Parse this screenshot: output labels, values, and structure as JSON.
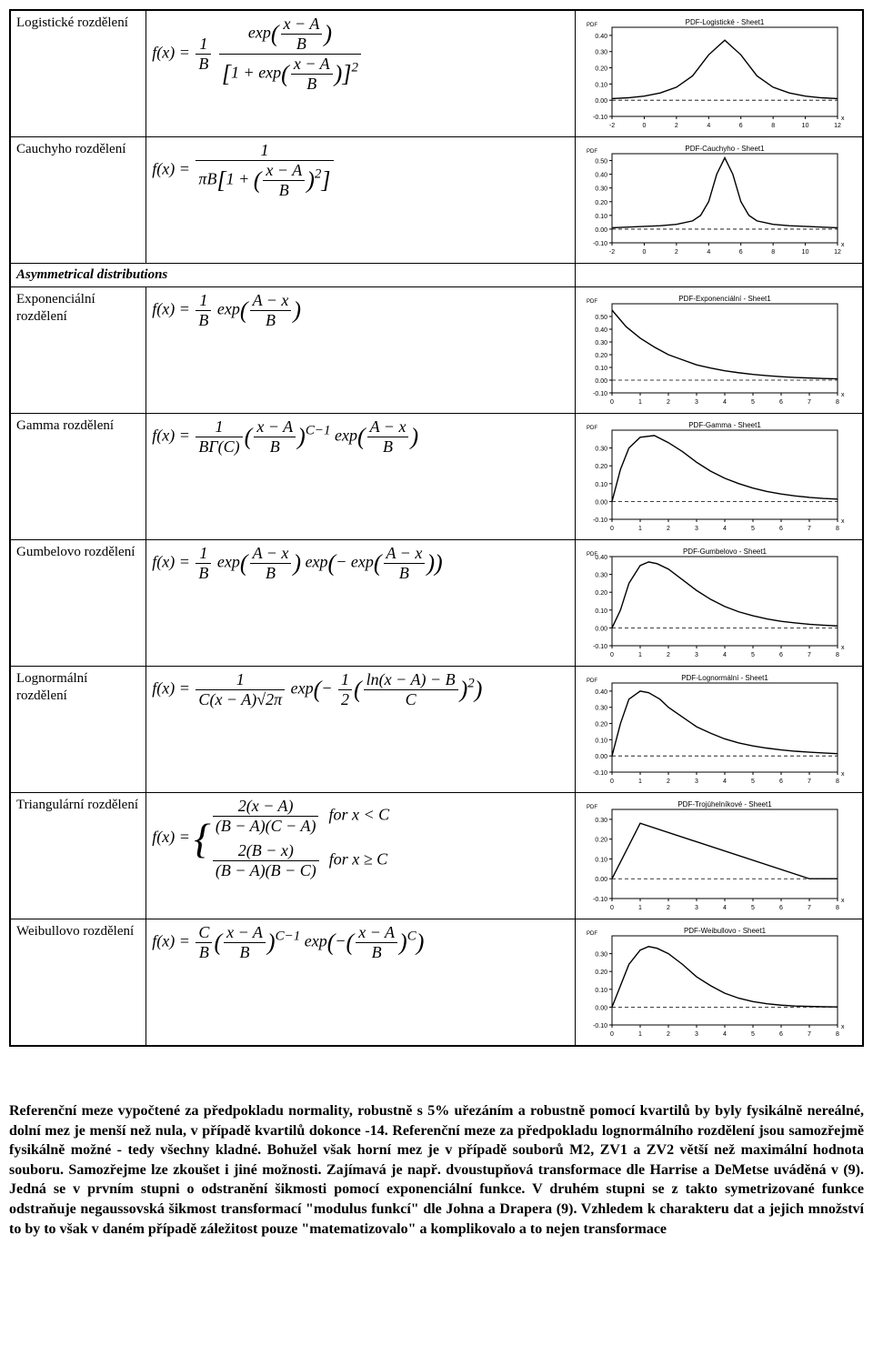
{
  "section_header": "Asymmetrical distributions",
  "paragraph": "Referenční meze vypočtené za předpokladu normality, robustně s 5% uřezáním a robustně pomocí kvartilů by byly fysikálně nereálné, dolní mez je menší než nula, v případě kvartilů dokonce -14. Referenční meze za předpokladu lognormálního rozdělení jsou samozřejmě fysikálně možné - tedy všechny kladné. Bohužel však horní mez je v případě souborů M2, ZV1 a ZV2 větší než maximální hodnota souboru. Samozřejme lze zkoušet i jiné možnosti. Zajímavá je např. dvoustupňová transformace dle Harrise a DeMetse uváděná v (9). Jedná se v prvním stupni o odstranění šikmosti pomocí exponenciální funkce. V druhém stupni se z takto symetrizované funkce odstraňuje negaussovská šikmost transformací \"modulus funkcí\" dle Johna a Drapera (9). Vzhledem k charakteru dat a jejich množství to by to však v daném případě záležitost pouze \"matematizovalo\" a komplikovalo a to nejen transformace",
  "rows": [
    {
      "name": "Logistické rozdělení",
      "formula_html": "<span style='font-style:italic'>f</span>(<span style='font-style:italic'>x</span>) = <span class='frac'><span class='num'>1</span><span class='den'><span style='font-style:italic'>B</span></span></span> <span class='frac'><span class='num'>exp<span class='big'>(</span><span class='frac'><span class='num'><span style='font-style:italic'>x − A</span></span><span class='den'><span style='font-style:italic'>B</span></span></span><span class='big'>)</span></span><span class='den'><span class='big'>[</span>1 + exp<span class='big'>(</span><span class='frac'><span class='num'><span style='font-style:italic'>x − A</span></span><span class='den'><span style='font-style:italic'>B</span></span></span><span class='big'>)</span><span class='big'>]</span><sup>2</sup></span></span>",
      "chart": {
        "title": "PDF-Logistické - Sheet1",
        "xmin": -2,
        "xmax": 12,
        "xticks": [
          -2,
          0,
          2,
          4,
          6,
          8,
          10,
          12
        ],
        "ymin": -0.1,
        "ymax": 0.45,
        "yticks": [
          -0.1,
          0.0,
          0.1,
          0.2,
          0.3,
          0.4
        ],
        "curve": [
          [
            -2,
            0.01
          ],
          [
            -1,
            0.015
          ],
          [
            0,
            0.025
          ],
          [
            1,
            0.045
          ],
          [
            2,
            0.08
          ],
          [
            3,
            0.15
          ],
          [
            4,
            0.28
          ],
          [
            5,
            0.37
          ],
          [
            6,
            0.28
          ],
          [
            7,
            0.15
          ],
          [
            8,
            0.08
          ],
          [
            9,
            0.045
          ],
          [
            10,
            0.025
          ],
          [
            11,
            0.015
          ],
          [
            12,
            0.01
          ]
        ],
        "line_color": "#000000",
        "bg": "#ffffff",
        "axis_color": "#000000",
        "title_fontsize": 8,
        "tick_fontsize": 7
      }
    },
    {
      "name": "Cauchyho rozdělení",
      "formula_html": "<span style='font-style:italic'>f</span>(<span style='font-style:italic'>x</span>) = <span class='frac'><span class='num'>1</span><span class='den'><span style='font-style:italic'>πB</span><span class='big'>[</span>1 + <span class='big'>(</span><span class='frac'><span class='num'><span style='font-style:italic'>x − A</span></span><span class='den'><span style='font-style:italic'>B</span></span></span><span class='big'>)</span><sup>2</sup><span class='big'>]</span></span></span>",
      "chart": {
        "title": "PDF-Cauchyho - Sheet1",
        "xmin": -2,
        "xmax": 12,
        "xticks": [
          -2,
          0,
          2,
          4,
          6,
          8,
          10,
          12
        ],
        "ymin": -0.1,
        "ymax": 0.55,
        "yticks": [
          -0.1,
          0.0,
          0.1,
          0.2,
          0.3,
          0.4,
          0.5
        ],
        "curve": [
          [
            -2,
            0.01
          ],
          [
            -1,
            0.015
          ],
          [
            0,
            0.02
          ],
          [
            1,
            0.025
          ],
          [
            2,
            0.035
          ],
          [
            3,
            0.06
          ],
          [
            3.5,
            0.1
          ],
          [
            4,
            0.2
          ],
          [
            4.5,
            0.4
          ],
          [
            5,
            0.52
          ],
          [
            5.5,
            0.4
          ],
          [
            6,
            0.2
          ],
          [
            6.5,
            0.1
          ],
          [
            7,
            0.06
          ],
          [
            8,
            0.035
          ],
          [
            9,
            0.025
          ],
          [
            10,
            0.02
          ],
          [
            11,
            0.015
          ],
          [
            12,
            0.01
          ]
        ],
        "line_color": "#000000",
        "bg": "#ffffff",
        "axis_color": "#000000",
        "title_fontsize": 8,
        "tick_fontsize": 7
      }
    },
    {
      "name": "Exponenciální rozdělení",
      "formula_html": "<span style='font-style:italic'>f</span>(<span style='font-style:italic'>x</span>) = <span class='frac'><span class='num'>1</span><span class='den'><span style='font-style:italic'>B</span></span></span> exp<span class='big'>(</span><span class='frac'><span class='num'><span style='font-style:italic'>A − x</span></span><span class='den'><span style='font-style:italic'>B</span></span></span><span class='big'>)</span>",
      "chart": {
        "title": "PDF-Exponenciální - Sheet1",
        "xmin": 0,
        "xmax": 8,
        "xticks": [
          0,
          1,
          2,
          3,
          4,
          5,
          6,
          7,
          8
        ],
        "ymin": -0.1,
        "ymax": 0.6,
        "yticks": [
          -0.1,
          0.0,
          0.1,
          0.2,
          0.3,
          0.4,
          0.5
        ],
        "curve": [
          [
            0,
            0.55
          ],
          [
            0.5,
            0.42
          ],
          [
            1,
            0.33
          ],
          [
            1.5,
            0.26
          ],
          [
            2,
            0.2
          ],
          [
            2.5,
            0.16
          ],
          [
            3,
            0.12
          ],
          [
            3.5,
            0.095
          ],
          [
            4,
            0.074
          ],
          [
            4.5,
            0.058
          ],
          [
            5,
            0.045
          ],
          [
            5.5,
            0.035
          ],
          [
            6,
            0.027
          ],
          [
            6.5,
            0.021
          ],
          [
            7,
            0.017
          ],
          [
            7.5,
            0.013
          ],
          [
            8,
            0.01
          ]
        ],
        "line_color": "#000000",
        "bg": "#ffffff",
        "axis_color": "#000000",
        "title_fontsize": 8,
        "tick_fontsize": 7
      }
    },
    {
      "name": "Gamma rozdělení",
      "formula_html": "<span style='font-style:italic'>f</span>(<span style='font-style:italic'>x</span>) = <span class='frac'><span class='num'>1</span><span class='den'><span style='font-style:italic'>B</span>Γ(<span style='font-style:italic'>C</span>)</span></span><span class='big'>(</span><span class='frac'><span class='num'><span style='font-style:italic'>x − A</span></span><span class='den'><span style='font-style:italic'>B</span></span></span><span class='big'>)</span><sup><span style='font-style:italic'>C</span>−1</sup> exp<span class='big'>(</span><span class='frac'><span class='num'><span style='font-style:italic'>A − x</span></span><span class='den'><span style='font-style:italic'>B</span></span></span><span class='big'>)</span>",
      "chart": {
        "title": "PDF-Gamma - Sheet1",
        "xmin": 0,
        "xmax": 8,
        "xticks": [
          0,
          1,
          2,
          3,
          4,
          5,
          6,
          7,
          8
        ],
        "ymin": -0.1,
        "ymax": 0.4,
        "yticks": [
          -0.1,
          0.0,
          0.1,
          0.2,
          0.3
        ],
        "curve": [
          [
            0,
            0
          ],
          [
            0.3,
            0.18
          ],
          [
            0.6,
            0.3
          ],
          [
            1,
            0.36
          ],
          [
            1.5,
            0.37
          ],
          [
            2,
            0.33
          ],
          [
            2.5,
            0.28
          ],
          [
            3,
            0.22
          ],
          [
            3.5,
            0.17
          ],
          [
            4,
            0.13
          ],
          [
            4.5,
            0.1
          ],
          [
            5,
            0.075
          ],
          [
            5.5,
            0.056
          ],
          [
            6,
            0.042
          ],
          [
            6.5,
            0.031
          ],
          [
            7,
            0.023
          ],
          [
            7.5,
            0.017
          ],
          [
            8,
            0.013
          ]
        ],
        "line_color": "#000000",
        "bg": "#ffffff",
        "axis_color": "#000000",
        "title_fontsize": 8,
        "tick_fontsize": 7
      }
    },
    {
      "name": "Gumbelovo rozdělení",
      "formula_html": "<span style='font-style:italic'>f</span>(<span style='font-style:italic'>x</span>) = <span class='frac'><span class='num'>1</span><span class='den'><span style='font-style:italic'>B</span></span></span> exp<span class='big'>(</span><span class='frac'><span class='num'><span style='font-style:italic'>A − x</span></span><span class='den'><span style='font-style:italic'>B</span></span></span><span class='big'>)</span> exp<span class='big'>(</span>− exp<span class='big'>(</span><span class='frac'><span class='num'><span style='font-style:italic'>A − x</span></span><span class='den'><span style='font-style:italic'>B</span></span></span><span class='big'>)</span><span class='big'>)</span>",
      "chart": {
        "title": "PDF-Gumbelovo - Sheet1",
        "xmin": 0,
        "xmax": 8,
        "xticks": [
          0,
          1,
          2,
          3,
          4,
          5,
          6,
          7,
          8
        ],
        "ymin": -0.1,
        "ymax": 0.4,
        "yticks": [
          -0.1,
          0.0,
          0.1,
          0.2,
          0.3,
          0.4
        ],
        "curve": [
          [
            0,
            0
          ],
          [
            0.3,
            0.1
          ],
          [
            0.6,
            0.25
          ],
          [
            1,
            0.35
          ],
          [
            1.3,
            0.37
          ],
          [
            1.6,
            0.36
          ],
          [
            2,
            0.33
          ],
          [
            2.5,
            0.27
          ],
          [
            3,
            0.21
          ],
          [
            3.5,
            0.16
          ],
          [
            4,
            0.12
          ],
          [
            4.5,
            0.09
          ],
          [
            5,
            0.068
          ],
          [
            5.5,
            0.05
          ],
          [
            6,
            0.037
          ],
          [
            6.5,
            0.028
          ],
          [
            7,
            0.02
          ],
          [
            7.5,
            0.015
          ],
          [
            8,
            0.011
          ]
        ],
        "line_color": "#000000",
        "bg": "#ffffff",
        "axis_color": "#000000",
        "title_fontsize": 8,
        "tick_fontsize": 7
      }
    },
    {
      "name": "Lognormální rozdělení",
      "formula_html": "<span style='font-style:italic'>f</span>(<span style='font-style:italic'>x</span>) = <span class='frac'><span class='num'>1</span><span class='den'><span style='font-style:italic'>C</span>(<span style='font-style:italic'>x − A</span>)√<span style='text-decoration:overline'>2π</span></span></span> exp<span class='big'>(</span>− <span class='frac'><span class='num'>1</span><span class='den'>2</span></span><span class='big'>(</span><span class='frac'><span class='num'>ln(<span style='font-style:italic'>x − A</span>) − <span style='font-style:italic'>B</span></span><span class='den'><span style='font-style:italic'>C</span></span></span><span class='big'>)</span><sup>2</sup><span class='big'>)</span>",
      "chart": {
        "title": "PDF-Lognormální - Sheet1",
        "xmin": 0,
        "xmax": 8,
        "xticks": [
          0,
          1,
          2,
          3,
          4,
          5,
          6,
          7,
          8
        ],
        "ymin": -0.1,
        "ymax": 0.45,
        "yticks": [
          -0.1,
          0.0,
          0.1,
          0.2,
          0.3,
          0.4
        ],
        "curve": [
          [
            0,
            0
          ],
          [
            0.3,
            0.2
          ],
          [
            0.6,
            0.35
          ],
          [
            1,
            0.4
          ],
          [
            1.3,
            0.39
          ],
          [
            1.7,
            0.35
          ],
          [
            2,
            0.3
          ],
          [
            2.5,
            0.24
          ],
          [
            3,
            0.18
          ],
          [
            3.5,
            0.14
          ],
          [
            4,
            0.105
          ],
          [
            4.5,
            0.08
          ],
          [
            5,
            0.062
          ],
          [
            5.5,
            0.048
          ],
          [
            6,
            0.037
          ],
          [
            6.5,
            0.029
          ],
          [
            7,
            0.023
          ],
          [
            7.5,
            0.018
          ],
          [
            8,
            0.014
          ]
        ],
        "line_color": "#000000",
        "bg": "#ffffff",
        "axis_color": "#000000",
        "title_fontsize": 8,
        "tick_fontsize": 7
      }
    },
    {
      "name": "Triangulární rozdělení",
      "formula_html": "<span style='font-style:italic'>f</span>(<span style='font-style:italic'>x</span>) = <span class='big' style='font-size:46px;vertical-align:middle'>{</span><span style='display:inline-block;vertical-align:middle;text-align:left'><span style='display:block;margin-bottom:6px'><span class='frac'><span class='num'>2(<span style='font-style:italic'>x − A</span>)</span><span class='den'>(<span style='font-style:italic'>B − A</span>)(<span style='font-style:italic'>C − A</span>)</span></span> &nbsp;<span style='font-style:italic'>for x &lt; C</span></span><span style='display:block'><span class='frac'><span class='num'>2(<span style='font-style:italic'>B − x</span>)</span><span class='den'>(<span style='font-style:italic'>B − A</span>)(<span style='font-style:italic'>B − C</span>)</span></span> &nbsp;<span style='font-style:italic'>for x ≥ C</span></span></span>",
      "chart": {
        "title": "PDF-Trojúhelníkové - Sheet1",
        "xmin": 0,
        "xmax": 8,
        "xticks": [
          0,
          1,
          2,
          3,
          4,
          5,
          6,
          7,
          8
        ],
        "ymin": -0.1,
        "ymax": 0.35,
        "yticks": [
          -0.1,
          0.0,
          0.1,
          0.2,
          0.3
        ],
        "curve": [
          [
            0,
            0
          ],
          [
            1,
            0.28
          ],
          [
            7,
            0.0
          ],
          [
            8,
            0
          ]
        ],
        "line_color": "#000000",
        "bg": "#ffffff",
        "axis_color": "#000000",
        "title_fontsize": 8,
        "tick_fontsize": 7
      }
    },
    {
      "name": "Weibullovo rozdělení",
      "formula_html": "<span style='font-style:italic'>f</span>(<span style='font-style:italic'>x</span>) = <span class='frac'><span class='num'><span style='font-style:italic'>C</span></span><span class='den'><span style='font-style:italic'>B</span></span></span><span class='big'>(</span><span class='frac'><span class='num'><span style='font-style:italic'>x − A</span></span><span class='den'><span style='font-style:italic'>B</span></span></span><span class='big'>)</span><sup><span style='font-style:italic'>C</span>−1</sup> exp<span class='big'>(</span>−<span class='big'>(</span><span class='frac'><span class='num'><span style='font-style:italic'>x − A</span></span><span class='den'><span style='font-style:italic'>B</span></span></span><span class='big'>)</span><sup><span style='font-style:italic'>C</span></sup><span class='big'>)</span>",
      "chart": {
        "title": "PDF-Weibullovo - Sheet1",
        "xmin": 0,
        "xmax": 8,
        "xticks": [
          0,
          1,
          2,
          3,
          4,
          5,
          6,
          7,
          8
        ],
        "ymin": -0.1,
        "ymax": 0.4,
        "yticks": [
          -0.1,
          0.0,
          0.1,
          0.2,
          0.3
        ],
        "curve": [
          [
            0,
            0
          ],
          [
            0.3,
            0.12
          ],
          [
            0.6,
            0.24
          ],
          [
            1,
            0.32
          ],
          [
            1.3,
            0.34
          ],
          [
            1.6,
            0.33
          ],
          [
            2,
            0.3
          ],
          [
            2.5,
            0.24
          ],
          [
            3,
            0.17
          ],
          [
            3.5,
            0.12
          ],
          [
            4,
            0.078
          ],
          [
            4.5,
            0.05
          ],
          [
            5,
            0.031
          ],
          [
            5.5,
            0.019
          ],
          [
            6,
            0.011
          ],
          [
            6.5,
            0.006
          ],
          [
            7,
            0.004
          ],
          [
            7.5,
            0.002
          ],
          [
            8,
            0.001
          ]
        ],
        "line_color": "#000000",
        "bg": "#ffffff",
        "axis_color": "#000000",
        "title_fontsize": 8,
        "tick_fontsize": 7
      }
    }
  ]
}
